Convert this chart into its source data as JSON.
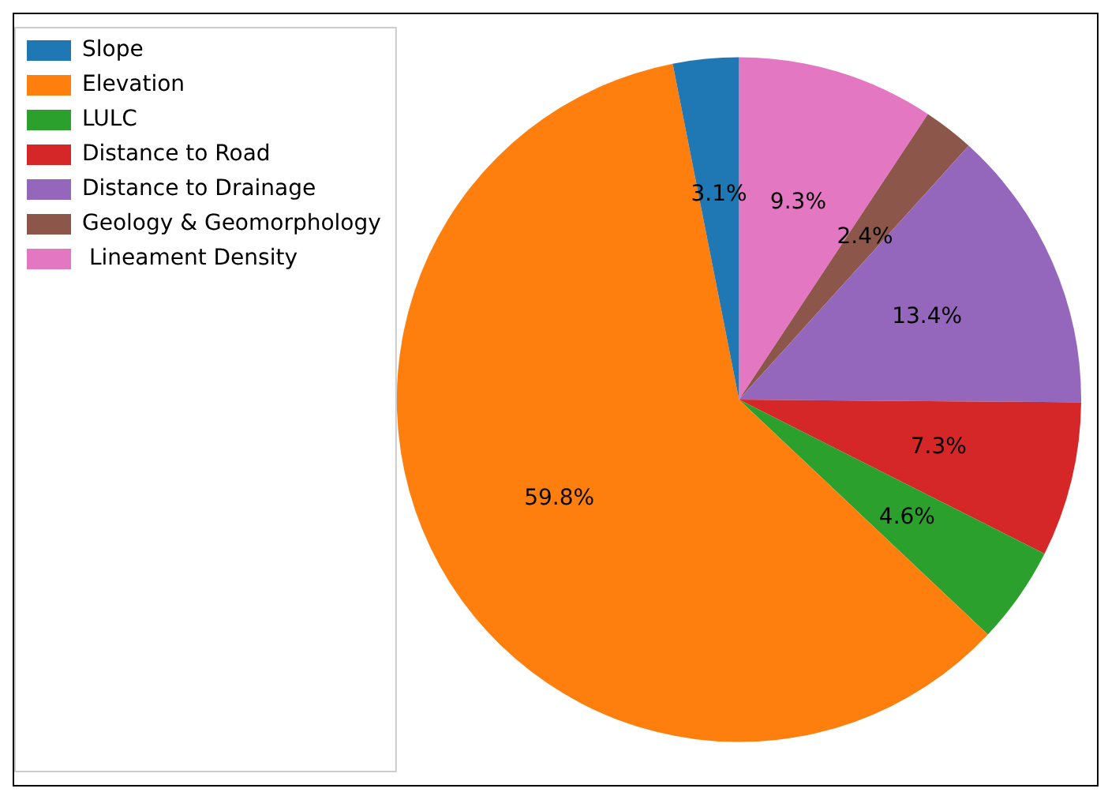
{
  "chart_data": {
    "type": "pie",
    "categories": [
      "Slope",
      "Elevation",
      "LULC",
      "Distance to Road",
      "Distance to Drainage",
      "Geology & Geomorphology",
      " Lineament Density"
    ],
    "values": [
      3.1,
      59.8,
      4.6,
      7.3,
      13.4,
      2.4,
      9.3
    ],
    "value_labels": [
      "3.1%",
      "59.8%",
      "4.6%",
      "7.3%",
      "13.4%",
      "2.4%",
      "9.3%"
    ],
    "colors": [
      "#1f77b4",
      "#ff7f0e",
      "#2ca02c",
      "#d62728",
      "#9467bd",
      "#8c564b",
      "#e377c2"
    ],
    "legend": "top left"
  }
}
